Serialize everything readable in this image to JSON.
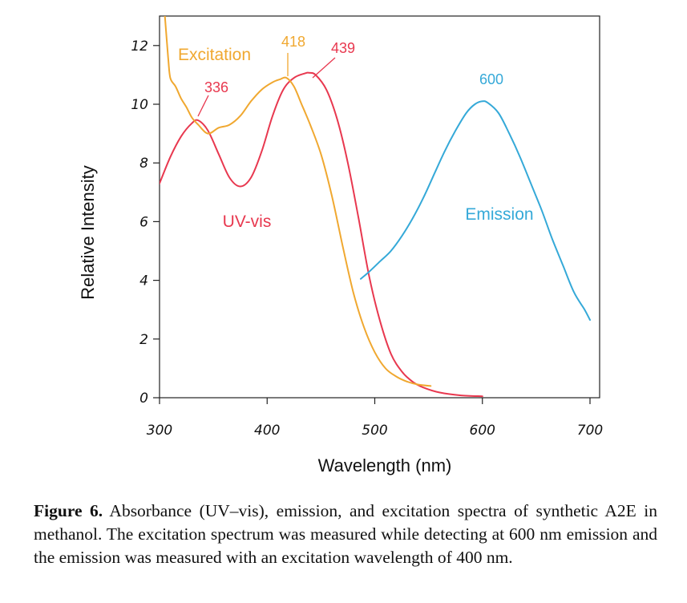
{
  "chart_data": {
    "type": "line",
    "title": "",
    "xlabel": "Wavelength (nm)",
    "ylabel": "Relative Intensity",
    "xlim": [
      300,
      700
    ],
    "ylim": [
      0,
      13
    ],
    "x_ticks": [
      300,
      400,
      500,
      600,
      700
    ],
    "y_ticks": [
      0,
      2,
      4,
      6,
      8,
      10,
      12
    ],
    "grid": false,
    "legend": "none",
    "series": [
      {
        "name": "UV-vis",
        "color": "#e8384f",
        "x": [
          300,
          310,
          320,
          330,
          336,
          345,
          355,
          365,
          375,
          385,
          395,
          405,
          415,
          425,
          435,
          439,
          445,
          455,
          465,
          475,
          485,
          495,
          505,
          515,
          525,
          535,
          545,
          560,
          580,
          600
        ],
        "y": [
          7.3,
          8.2,
          8.9,
          9.35,
          9.45,
          9.1,
          8.3,
          7.5,
          7.2,
          7.5,
          8.4,
          9.6,
          10.5,
          10.9,
          11.05,
          11.07,
          11.0,
          10.5,
          9.5,
          8.0,
          6.1,
          4.1,
          2.6,
          1.5,
          0.9,
          0.55,
          0.35,
          0.18,
          0.08,
          0.05
        ]
      },
      {
        "name": "Excitation",
        "color": "#f0a830",
        "x": [
          305,
          308,
          310,
          315,
          320,
          325,
          330,
          336,
          345,
          355,
          365,
          375,
          385,
          395,
          405,
          412,
          418,
          425,
          432,
          440,
          450,
          460,
          470,
          480,
          490,
          500,
          510,
          520,
          530,
          540,
          552
        ],
        "y": [
          13.0,
          11.6,
          10.9,
          10.6,
          10.2,
          9.9,
          9.55,
          9.3,
          9.0,
          9.2,
          9.3,
          9.6,
          10.1,
          10.5,
          10.75,
          10.85,
          10.9,
          10.6,
          10.0,
          9.3,
          8.3,
          6.9,
          5.2,
          3.6,
          2.4,
          1.55,
          1.0,
          0.72,
          0.55,
          0.45,
          0.4
        ]
      },
      {
        "name": "Emission",
        "color": "#35a9d8",
        "x": [
          487,
          495,
          505,
          515,
          525,
          535,
          545,
          555,
          565,
          575,
          585,
          593,
          600,
          605,
          615,
          625,
          635,
          645,
          655,
          665,
          675,
          685,
          695,
          700
        ],
        "y": [
          4.05,
          4.3,
          4.65,
          5.0,
          5.5,
          6.1,
          6.8,
          7.6,
          8.4,
          9.1,
          9.7,
          10.0,
          10.1,
          10.05,
          9.7,
          9.0,
          8.2,
          7.3,
          6.4,
          5.4,
          4.5,
          3.6,
          3.0,
          2.65
        ]
      }
    ],
    "series_labels": [
      "Excitation",
      "UV-vis",
      "Emission"
    ],
    "peak_annotations": [
      {
        "series": "UV-vis",
        "x": 336,
        "label": "336",
        "color": "#e8384f"
      },
      {
        "series": "Excitation",
        "x": 418,
        "label": "418",
        "color": "#f0a830"
      },
      {
        "series": "UV-vis",
        "x": 439,
        "label": "439",
        "color": "#e8384f"
      },
      {
        "series": "Emission",
        "x": 600,
        "label": "600",
        "color": "#35a9d8"
      }
    ]
  },
  "caption": {
    "label": "Figure 6.",
    "text": " Absorbance (UV–vis), emission, and excitation spectra of synthetic A2E in methanol. The excitation spectrum was measured while detecting at 600 nm emission and the emission was measured with an excitation wavelength of 400 nm."
  }
}
